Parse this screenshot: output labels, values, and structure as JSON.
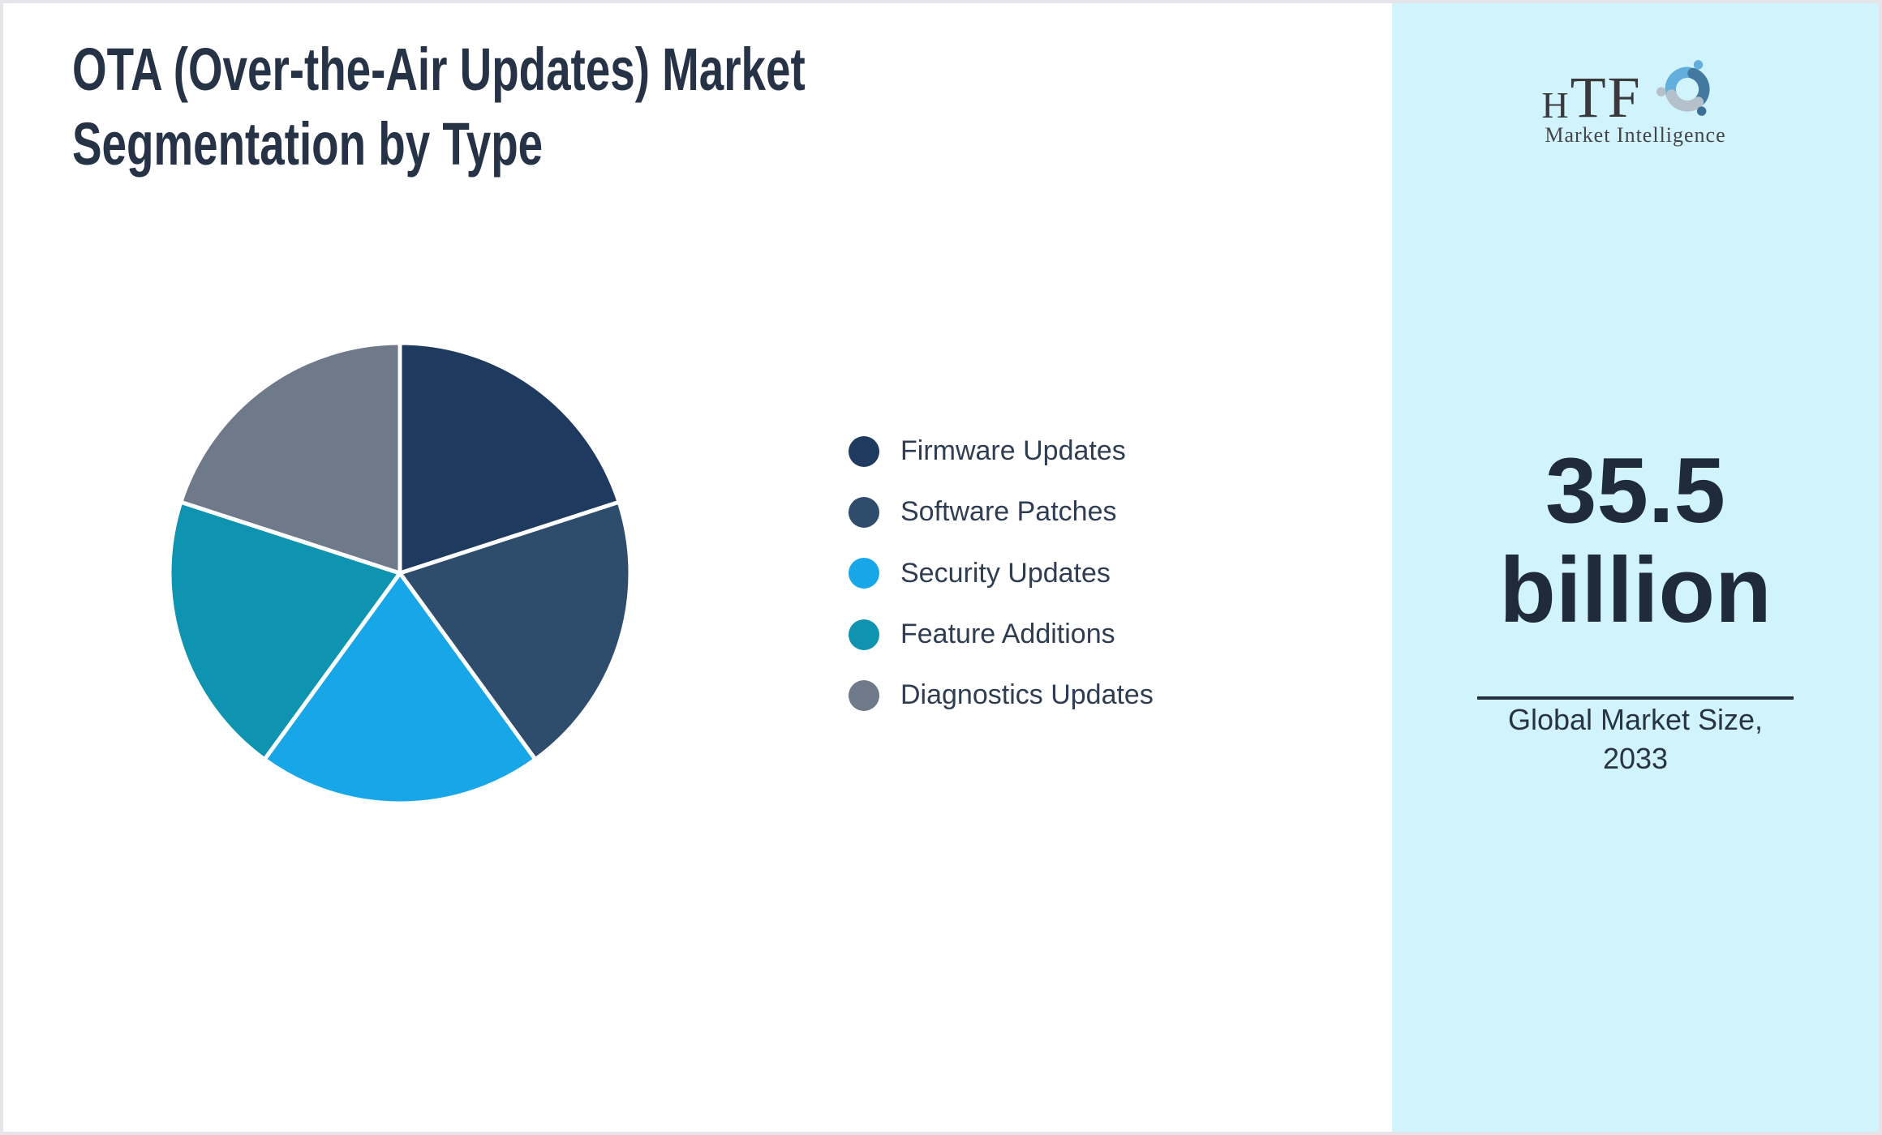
{
  "page": {
    "background": "#ffffff",
    "border_color": "#e5e4e8"
  },
  "title": {
    "line1": "OTA (Over-the-Air Updates) Market",
    "line2": "Segmentation by Type",
    "color": "#263245"
  },
  "chart_data": {
    "type": "pie",
    "title": "OTA (Over-the-Air Updates) Market Segmentation by Type",
    "labels": [
      "Firmware Updates",
      "Software Patches",
      "Security Updates",
      "Feature Additions",
      "Diagnostics Updates"
    ],
    "values": [
      20,
      20,
      20,
      20,
      20
    ],
    "value_note": "five visually equal slices (~20% each); no numeric data labels printed on chart",
    "colors": [
      "#1e3a5f",
      "#2e4d6d",
      "#17a7e9",
      "#0e93b0",
      "#6e7989"
    ],
    "start_angle_deg": 0,
    "direction": "clockwise",
    "legend_position": "right-of-chart",
    "slice_border_color": "#ffffff"
  },
  "legend": {
    "text_color": "#2e3d51"
  },
  "sidebar": {
    "background": "#d1f3fb",
    "logo": {
      "letter_h": "H",
      "letter_t": "T",
      "letter_f": "F",
      "subtitle": "Market Intelligence",
      "icon": "dolphin-swirl-icon",
      "text_color": "#3a3a3c",
      "dolphin_colors": [
        "#64aedd",
        "#44799f",
        "#b4c0ca"
      ]
    },
    "market_size_value": "35.5",
    "market_size_unit": "billion",
    "caption_line1": "Global Market Size,",
    "caption_line2": "2033",
    "text_color": "#1f2b3a"
  }
}
